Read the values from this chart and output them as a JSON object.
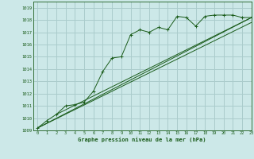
{
  "title": "Graphe pression niveau de la mer (hPa)",
  "bg_color": "#cce8e8",
  "grid_color": "#aacccc",
  "line_color": "#1a5c1a",
  "xlim": [
    -0.5,
    23
  ],
  "ylim": [
    1009,
    1019.5
  ],
  "xticks": [
    0,
    1,
    2,
    3,
    4,
    5,
    6,
    7,
    8,
    9,
    10,
    11,
    12,
    13,
    14,
    15,
    16,
    17,
    18,
    19,
    20,
    21,
    22,
    23
  ],
  "yticks": [
    1009,
    1010,
    1011,
    1012,
    1013,
    1014,
    1015,
    1016,
    1017,
    1018,
    1019
  ],
  "main_series": [
    [
      0,
      1009.2
    ],
    [
      1,
      1009.8
    ],
    [
      2,
      1010.3
    ],
    [
      3,
      1011.0
    ],
    [
      4,
      1011.1
    ],
    [
      5,
      1011.3
    ],
    [
      6,
      1012.2
    ],
    [
      7,
      1013.8
    ],
    [
      8,
      1014.9
    ],
    [
      9,
      1015.0
    ],
    [
      10,
      1016.8
    ],
    [
      11,
      1017.2
    ],
    [
      12,
      1017.0
    ],
    [
      13,
      1017.4
    ],
    [
      14,
      1017.2
    ],
    [
      15,
      1018.3
    ],
    [
      16,
      1018.2
    ],
    [
      17,
      1017.5
    ],
    [
      18,
      1018.3
    ],
    [
      19,
      1018.4
    ],
    [
      20,
      1018.4
    ],
    [
      21,
      1018.4
    ],
    [
      22,
      1018.2
    ],
    [
      23,
      1018.2
    ]
  ],
  "trend_line1": [
    [
      0,
      1009.2
    ],
    [
      23,
      1018.2
    ]
  ],
  "trend_line2": [
    [
      0,
      1009.2
    ],
    [
      23,
      1017.8
    ]
  ],
  "trend_line3": [
    [
      2,
      1010.3
    ],
    [
      23,
      1018.2
    ]
  ]
}
